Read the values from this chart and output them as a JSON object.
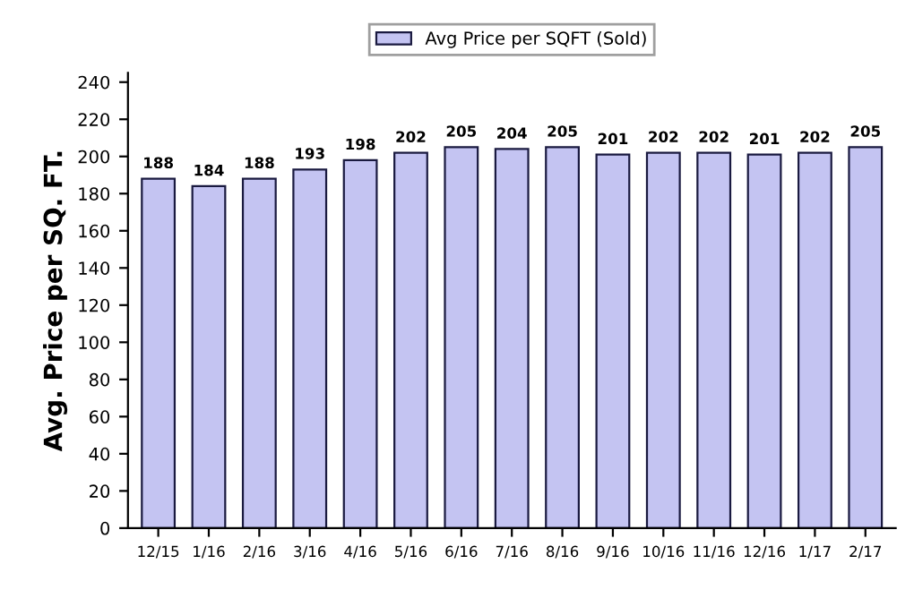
{
  "chart_data": {
    "type": "bar",
    "ylabel": "Avg. Price per SQ. FT.",
    "categories": [
      "12/15",
      "1/16",
      "2/16",
      "3/16",
      "4/16",
      "5/16",
      "6/16",
      "7/16",
      "8/16",
      "9/16",
      "10/16",
      "11/16",
      "12/16",
      "1/17",
      "2/17"
    ],
    "series": [
      {
        "name": "Avg Price per SQFT (Sold)",
        "color": "#c4c4f2",
        "values": [
          188,
          184,
          188,
          193,
          198,
          202,
          205,
          204,
          205,
          201,
          202,
          202,
          201,
          202,
          205
        ]
      }
    ],
    "ylim": [
      0,
      245
    ],
    "yticks": [
      0,
      20,
      40,
      60,
      80,
      100,
      120,
      140,
      160,
      180,
      200,
      220,
      240
    ],
    "data_labels": true,
    "grid": false,
    "legend": "top"
  }
}
